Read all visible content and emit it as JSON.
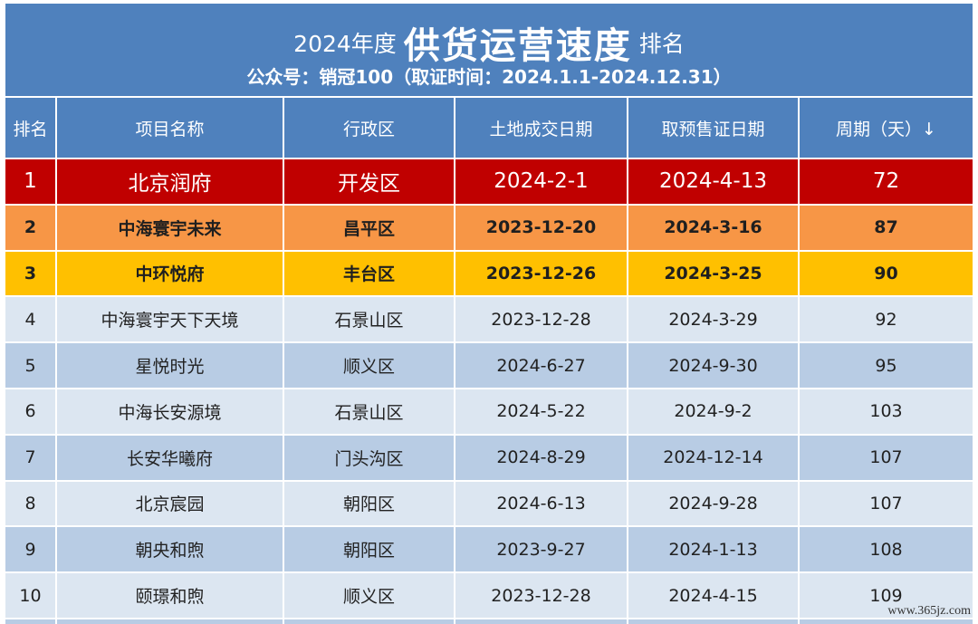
{
  "title": {
    "prefix": "2024年度",
    "main": "供货运营速度",
    "suffix": "排名",
    "subtitle": "公众号：销冠100（取证时间：2024.1.1-2024.12.31）"
  },
  "table": {
    "headers": [
      "排名",
      "项目名称",
      "行政区",
      "土地成交日期",
      "取预售证日期",
      "周期（天）↓"
    ],
    "rows": [
      {
        "rank": "1",
        "name": "北京润府",
        "district": "开发区",
        "land_date": "2024-2-1",
        "presale_date": "2024-4-13",
        "days": "72"
      },
      {
        "rank": "2",
        "name": "中海寰宇未来",
        "district": "昌平区",
        "land_date": "2023-12-20",
        "presale_date": "2024-3-16",
        "days": "87"
      },
      {
        "rank": "3",
        "name": "中环悦府",
        "district": "丰台区",
        "land_date": "2023-12-26",
        "presale_date": "2024-3-25",
        "days": "90"
      },
      {
        "rank": "4",
        "name": "中海寰宇天下天境",
        "district": "石景山区",
        "land_date": "2023-12-28",
        "presale_date": "2024-3-29",
        "days": "92"
      },
      {
        "rank": "5",
        "name": "星悦时光",
        "district": "顺义区",
        "land_date": "2024-6-27",
        "presale_date": "2024-9-30",
        "days": "95"
      },
      {
        "rank": "6",
        "name": "中海长安源境",
        "district": "石景山区",
        "land_date": "2024-5-22",
        "presale_date": "2024-9-2",
        "days": "103"
      },
      {
        "rank": "7",
        "name": "长安华曦府",
        "district": "门头沟区",
        "land_date": "2024-8-29",
        "presale_date": "2024-12-14",
        "days": "107"
      },
      {
        "rank": "8",
        "name": "北京宸园",
        "district": "朝阳区",
        "land_date": "2024-6-13",
        "presale_date": "2024-9-28",
        "days": "107"
      },
      {
        "rank": "9",
        "name": "朝央和煦",
        "district": "朝阳区",
        "land_date": "2023-9-27",
        "presale_date": "2024-1-13",
        "days": "108"
      },
      {
        "rank": "10",
        "name": "颐璟和煦",
        "district": "顺义区",
        "land_date": "2023-12-28",
        "presale_date": "2024-4-15",
        "days": "109"
      }
    ]
  },
  "watermark": "www.365jz.com",
  "colors": {
    "header_blue": "#4f81bd",
    "rank1_red": "#c00000",
    "rank2_orange": "#f79646",
    "rank3_yellow": "#ffc000",
    "row_light": "#dce6f1",
    "row_mid": "#b8cce4"
  }
}
